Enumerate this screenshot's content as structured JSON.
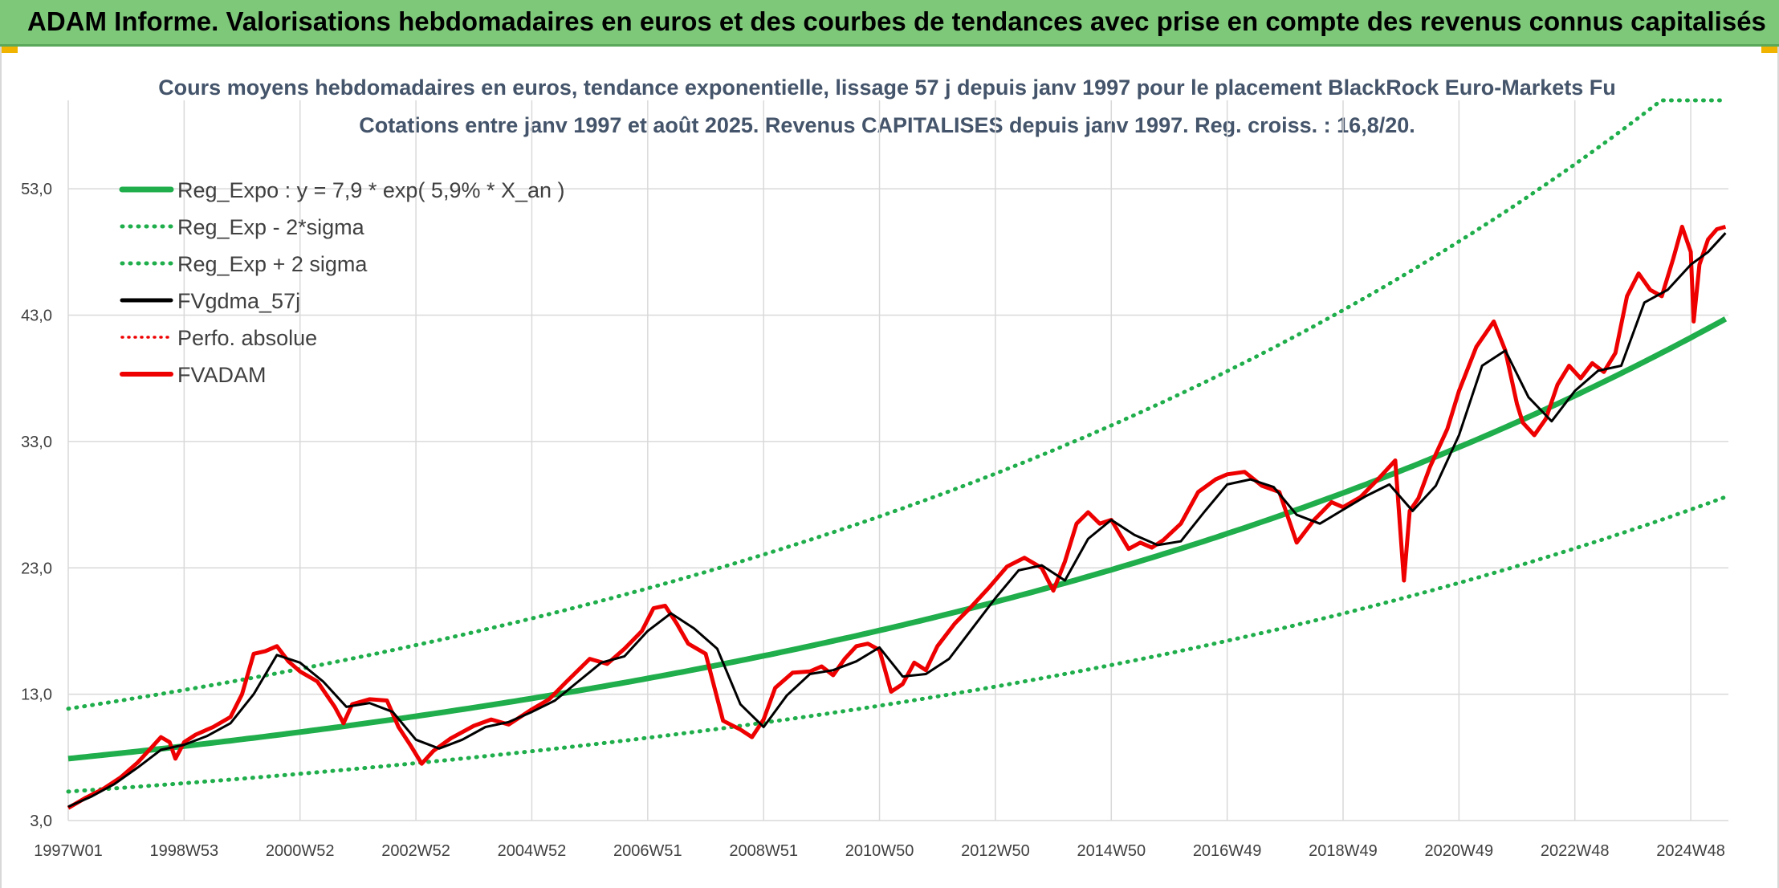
{
  "header": {
    "title": "ADAM Informe. Valorisations hebdomadaires en euros et des courbes de tendances avec prise en compte des revenus connus capitalisés"
  },
  "colors": {
    "header_bg": "#7ec87a",
    "trend_green": "#1fae4b",
    "band_green": "#1fae4b",
    "smoothed_black": "#000000",
    "fvadam_red": "#ee0000"
  },
  "chart_data": {
    "type": "line",
    "title": "Cours moyens hebdomadaires en euros, tendance exponentielle, lissage 57 j depuis janv 1997 pour le placement BlackRock Euro-Markets Fu",
    "subtitle": "Cotations entre janv 1997 et août 2025. Revenus CAPITALISES depuis janv 1997. Reg. croiss. : 16,8/20.",
    "xlabel": "",
    "ylabel": "",
    "ylim": [
      3,
      60
    ],
    "yticks": [
      "3,0",
      "13,0",
      "23,0",
      "33,0",
      "43,0",
      "53,0"
    ],
    "ytick_values": [
      3,
      13,
      23,
      33,
      43,
      53
    ],
    "xlim": [
      1997.0,
      2025.65
    ],
    "xticks": [
      "1997W01",
      "1998W53",
      "2000W52",
      "2002W52",
      "2004W52",
      "2006W51",
      "2008W51",
      "2010W50",
      "2012W50",
      "2014W50",
      "2016W49",
      "2018W49",
      "2020W49",
      "2022W48",
      "2024W48"
    ],
    "xtick_values": [
      1997.0,
      1999.0,
      2001.0,
      2003.0,
      2005.0,
      2007.0,
      2009.0,
      2011.0,
      2013.0,
      2015.0,
      2017.0,
      2019.0,
      2021.0,
      2023.0,
      2025.0
    ],
    "grid": true,
    "legend_position": "top-left",
    "legend": [
      "Reg_Expo : y = 7,9 * exp( 5,9% *  X_an )",
      "Reg_Exp - 2*sigma",
      "Reg_Exp + 2 sigma",
      "FVgdma_57j",
      "Perfo. absolue",
      "FVADAM"
    ],
    "regression": {
      "a": 7.9,
      "rate": 0.059,
      "lower_factor": 0.67,
      "upper_factor": 1.5
    },
    "series": [
      {
        "name": "FVADAM",
        "x": [
          1997.0,
          1997.3,
          1997.6,
          1997.9,
          1998.2,
          1998.4,
          1998.6,
          1998.75,
          1998.85,
          1999.0,
          1999.2,
          1999.5,
          1999.8,
          2000.0,
          2000.2,
          2000.4,
          2000.6,
          2000.8,
          2001.0,
          2001.3,
          2001.6,
          2001.75,
          2001.9,
          2002.2,
          2002.5,
          2002.7,
          2002.9,
          2003.1,
          2003.3,
          2003.6,
          2004.0,
          2004.3,
          2004.6,
          2005.0,
          2005.3,
          2005.6,
          2006.0,
          2006.3,
          2006.6,
          2006.9,
          2007.1,
          2007.3,
          2007.5,
          2007.7,
          2008.0,
          2008.3,
          2008.6,
          2008.8,
          2009.0,
          2009.2,
          2009.5,
          2009.8,
          2010.0,
          2010.2,
          2010.4,
          2010.6,
          2010.8,
          2011.0,
          2011.2,
          2011.4,
          2011.6,
          2011.8,
          2012.0,
          2012.3,
          2012.6,
          2012.9,
          2013.2,
          2013.5,
          2013.8,
          2014.0,
          2014.2,
          2014.4,
          2014.6,
          2014.8,
          2015.0,
          2015.3,
          2015.5,
          2015.7,
          2015.9,
          2016.2,
          2016.5,
          2016.8,
          2017.0,
          2017.3,
          2017.6,
          2017.9,
          2018.2,
          2018.5,
          2018.8,
          2019.0,
          2019.3,
          2019.6,
          2019.9,
          2020.05,
          2020.15,
          2020.3,
          2020.5,
          2020.8,
          2021.0,
          2021.3,
          2021.6,
          2021.8,
          2022.0,
          2022.1,
          2022.3,
          2022.5,
          2022.7,
          2022.9,
          2023.1,
          2023.3,
          2023.5,
          2023.7,
          2023.9,
          2024.1,
          2024.3,
          2024.5,
          2024.7,
          2024.85,
          2025.0,
          2025.05,
          2025.15,
          2025.3,
          2025.45,
          2025.6
        ],
        "y": [
          4.0,
          4.8,
          5.5,
          6.4,
          7.6,
          8.6,
          9.6,
          9.2,
          7.9,
          9.2,
          9.8,
          10.4,
          11.2,
          13.0,
          16.2,
          16.4,
          16.8,
          15.6,
          14.8,
          14.0,
          12.0,
          10.7,
          12.2,
          12.6,
          12.5,
          10.4,
          9.0,
          7.5,
          8.5,
          9.5,
          10.5,
          11.0,
          10.6,
          11.8,
          12.6,
          14.0,
          15.8,
          15.4,
          16.6,
          18.0,
          19.8,
          20.0,
          18.6,
          17.0,
          16.2,
          10.9,
          10.2,
          9.6,
          11.0,
          13.5,
          14.7,
          14.8,
          15.2,
          14.5,
          15.8,
          16.8,
          17.0,
          16.5,
          13.2,
          13.8,
          15.5,
          14.9,
          16.8,
          18.6,
          20.0,
          21.5,
          23.1,
          23.8,
          23.0,
          21.2,
          23.5,
          26.5,
          27.4,
          26.5,
          26.8,
          24.5,
          25.0,
          24.6,
          25.2,
          26.5,
          29.0,
          30.0,
          30.4,
          30.6,
          29.5,
          29.0,
          25.0,
          26.8,
          28.2,
          27.8,
          28.6,
          30.0,
          31.5,
          22.0,
          27.5,
          28.5,
          31.0,
          34.0,
          37.0,
          40.5,
          42.5,
          40.2,
          36.0,
          34.5,
          33.5,
          34.8,
          37.5,
          39.0,
          38.0,
          39.2,
          38.5,
          40.0,
          44.5,
          46.3,
          45.0,
          44.5,
          47.5,
          50.0,
          48.0,
          42.5,
          47.0,
          49.0,
          49.8,
          50.0
        ]
      },
      {
        "name": "FVgdma_57j",
        "x": [
          1997.0,
          1997.4,
          1997.8,
          1998.2,
          1998.6,
          1999.0,
          1999.4,
          1999.8,
          2000.2,
          2000.6,
          2001.0,
          2001.4,
          2001.8,
          2002.2,
          2002.6,
          2003.0,
          2003.4,
          2003.8,
          2004.2,
          2004.6,
          2005.0,
          2005.4,
          2005.8,
          2006.2,
          2006.6,
          2007.0,
          2007.4,
          2007.8,
          2008.2,
          2008.6,
          2009.0,
          2009.4,
          2009.8,
          2010.2,
          2010.6,
          2011.0,
          2011.4,
          2011.8,
          2012.2,
          2012.6,
          2013.0,
          2013.4,
          2013.8,
          2014.2,
          2014.6,
          2015.0,
          2015.4,
          2015.8,
          2016.2,
          2016.6,
          2017.0,
          2017.4,
          2017.8,
          2018.2,
          2018.6,
          2019.0,
          2019.4,
          2019.8,
          2020.2,
          2020.6,
          2021.0,
          2021.4,
          2021.8,
          2022.2,
          2022.6,
          2023.0,
          2023.4,
          2023.8,
          2024.2,
          2024.6,
          2025.0,
          2025.3,
          2025.6
        ],
        "y": [
          4.1,
          4.9,
          5.9,
          7.2,
          8.6,
          9.0,
          9.7,
          10.7,
          13.0,
          16.1,
          15.5,
          14.0,
          12.0,
          12.3,
          11.6,
          9.4,
          8.7,
          9.4,
          10.4,
          10.8,
          11.6,
          12.5,
          14.0,
          15.5,
          16.0,
          18.0,
          19.4,
          18.2,
          16.6,
          12.2,
          10.4,
          12.9,
          14.6,
          14.9,
          15.6,
          16.7,
          14.4,
          14.6,
          15.8,
          18.2,
          20.6,
          22.8,
          23.2,
          22.0,
          25.3,
          26.8,
          25.6,
          24.8,
          25.1,
          27.4,
          29.6,
          30.0,
          29.4,
          27.2,
          26.5,
          27.6,
          28.7,
          29.6,
          27.5,
          29.5,
          33.5,
          39.0,
          40.2,
          36.5,
          34.6,
          37.0,
          38.6,
          39.0,
          44.0,
          45.0,
          47.0,
          48.0,
          49.5
        ]
      }
    ]
  }
}
